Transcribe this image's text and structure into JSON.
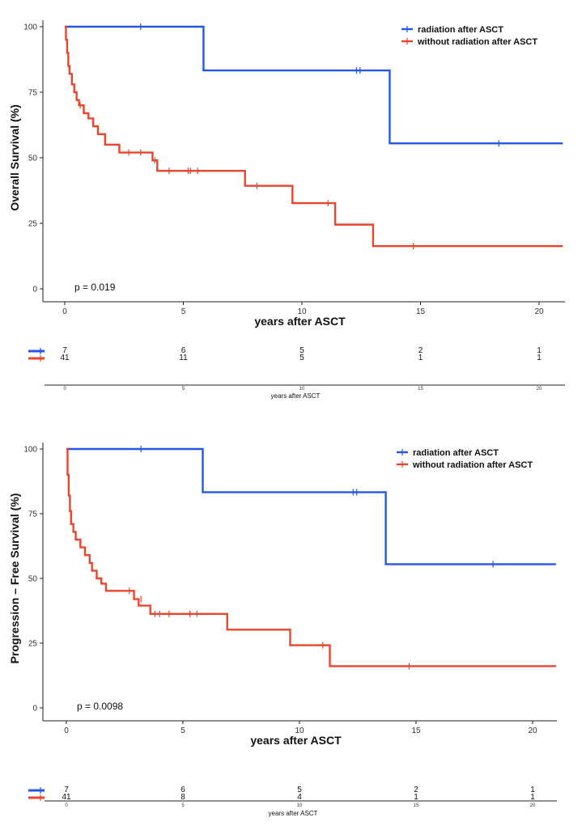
{
  "colors": {
    "radiation": "#2457e8",
    "without": "#e8462e",
    "axis": "#222222"
  },
  "chart_data": [
    {
      "type": "line",
      "subtype": "kaplan-meier",
      "xlabel": "years after ASCT",
      "ylabel": "Overall Survival (%)",
      "xlim": [
        0,
        21
      ],
      "ylim": [
        0,
        100
      ],
      "xticks": [
        0,
        5,
        10,
        15,
        20
      ],
      "yticks": [
        0,
        25,
        50,
        75,
        100
      ],
      "grid": false,
      "legend_position": "top-right",
      "p_value": "p = 0.019",
      "series": [
        {
          "name": "radiation after ASCT",
          "color_key": "radiation",
          "x": [
            0,
            5.85,
            5.85,
            13.7,
            13.7,
            21
          ],
          "y": [
            100,
            100,
            83.3,
            83.3,
            55.5,
            55.5
          ],
          "censored_x": [
            3.2,
            12.3,
            12.45,
            18.3
          ],
          "censored_y": [
            100,
            83.3,
            83.3,
            55.5
          ]
        },
        {
          "name": "without radiation after ASCT",
          "color_key": "without",
          "x": [
            0,
            0.05,
            0.05,
            0.1,
            0.1,
            0.15,
            0.15,
            0.2,
            0.2,
            0.3,
            0.3,
            0.4,
            0.4,
            0.5,
            0.5,
            0.6,
            0.6,
            0.8,
            0.8,
            1.0,
            1.0,
            1.2,
            1.2,
            1.4,
            1.4,
            1.7,
            1.7,
            2.3,
            2.3,
            3.7,
            3.7,
            3.9,
            3.9,
            7.6,
            7.6,
            9.6,
            9.6,
            11.4,
            11.4,
            13.0,
            13.0,
            21
          ],
          "y": [
            100,
            100,
            95,
            95,
            90,
            90,
            85,
            85,
            82,
            82,
            78,
            78,
            75,
            75,
            72,
            72,
            70,
            70,
            67,
            67,
            65,
            65,
            62,
            62,
            59,
            59,
            55,
            55,
            52,
            52,
            49,
            49,
            45,
            45,
            39.3,
            39.3,
            32.7,
            32.7,
            24.5,
            24.5,
            16.3,
            16.3
          ],
          "censored_x": [
            0.65,
            2.7,
            3.2,
            3.8,
            4.4,
            5.2,
            5.3,
            5.6,
            8.1,
            11.1,
            14.7
          ],
          "censored_y": [
            70,
            52,
            52,
            49,
            45,
            45,
            45,
            45,
            39.3,
            32.7,
            16.3
          ]
        }
      ],
      "risk_table": {
        "xlabel": "years after ASCT",
        "times": [
          0,
          5,
          10,
          15,
          20
        ],
        "tick_labels": [
          "0",
          "5",
          "10",
          "15",
          "20"
        ],
        "rows": [
          {
            "color_key": "radiation",
            "counts": [
              "7",
              "6",
              "5",
              "2",
              "1"
            ]
          },
          {
            "color_key": "without",
            "counts": [
              "41",
              "11",
              "5",
              "1",
              "1"
            ]
          }
        ]
      }
    },
    {
      "type": "line",
      "subtype": "kaplan-meier",
      "xlabel": "years after ASCT",
      "ylabel": "Progression – Free  Survival (%)",
      "xlim": [
        0,
        21
      ],
      "ylim": [
        0,
        100
      ],
      "xticks": [
        0,
        5,
        10,
        15,
        20
      ],
      "yticks": [
        0,
        25,
        50,
        75,
        100
      ],
      "grid": false,
      "legend_position": "top-right",
      "p_value": "p = 0.0098",
      "series": [
        {
          "name": "radiation after ASCT",
          "color_key": "radiation",
          "x": [
            0,
            5.85,
            5.85,
            13.7,
            13.7,
            21
          ],
          "y": [
            100,
            100,
            83.3,
            83.3,
            55.5,
            55.5
          ],
          "censored_x": [
            3.2,
            12.3,
            12.45,
            18.3
          ],
          "censored_y": [
            100,
            83.3,
            83.3,
            55.5
          ]
        },
        {
          "name": "without radiation after ASCT",
          "color_key": "without",
          "x": [
            0,
            0.05,
            0.05,
            0.1,
            0.1,
            0.15,
            0.15,
            0.2,
            0.2,
            0.3,
            0.3,
            0.4,
            0.4,
            0.6,
            0.6,
            0.8,
            0.8,
            1.0,
            1.0,
            1.1,
            1.1,
            1.3,
            1.3,
            1.5,
            1.5,
            1.7,
            1.7,
            2.9,
            2.9,
            3.1,
            3.1,
            3.6,
            3.6,
            6.9,
            6.9,
            9.6,
            9.6,
            11.3,
            11.3,
            21
          ],
          "y": [
            100,
            100,
            90,
            90,
            82,
            82,
            76,
            76,
            71,
            71,
            68,
            68,
            65,
            65,
            62,
            62,
            59,
            59,
            56,
            56,
            53,
            53,
            50,
            50,
            48,
            48,
            45.2,
            45.2,
            42,
            42,
            39.5,
            39.5,
            36.3,
            36.3,
            30.2,
            30.2,
            24.2,
            24.2,
            16.1,
            16.1
          ],
          "censored_x": [
            2.7,
            3.2,
            3.8,
            4.0,
            4.4,
            5.3,
            5.6,
            11.0,
            14.7
          ],
          "censored_y": [
            45.2,
            42,
            36.3,
            36.3,
            36.3,
            36.3,
            36.3,
            24.2,
            16.1
          ]
        }
      ],
      "risk_table": {
        "xlabel": "years after ASCT",
        "times": [
          0,
          5,
          10,
          15,
          20
        ],
        "tick_labels": [
          "0",
          "5",
          "10",
          "15",
          "20"
        ],
        "rows": [
          {
            "color_key": "radiation",
            "counts": [
              "7",
              "6",
              "5",
              "2",
              "1"
            ]
          },
          {
            "color_key": "without",
            "counts": [
              "41",
              "8",
              "4",
              "1",
              "1"
            ]
          }
        ]
      }
    }
  ]
}
